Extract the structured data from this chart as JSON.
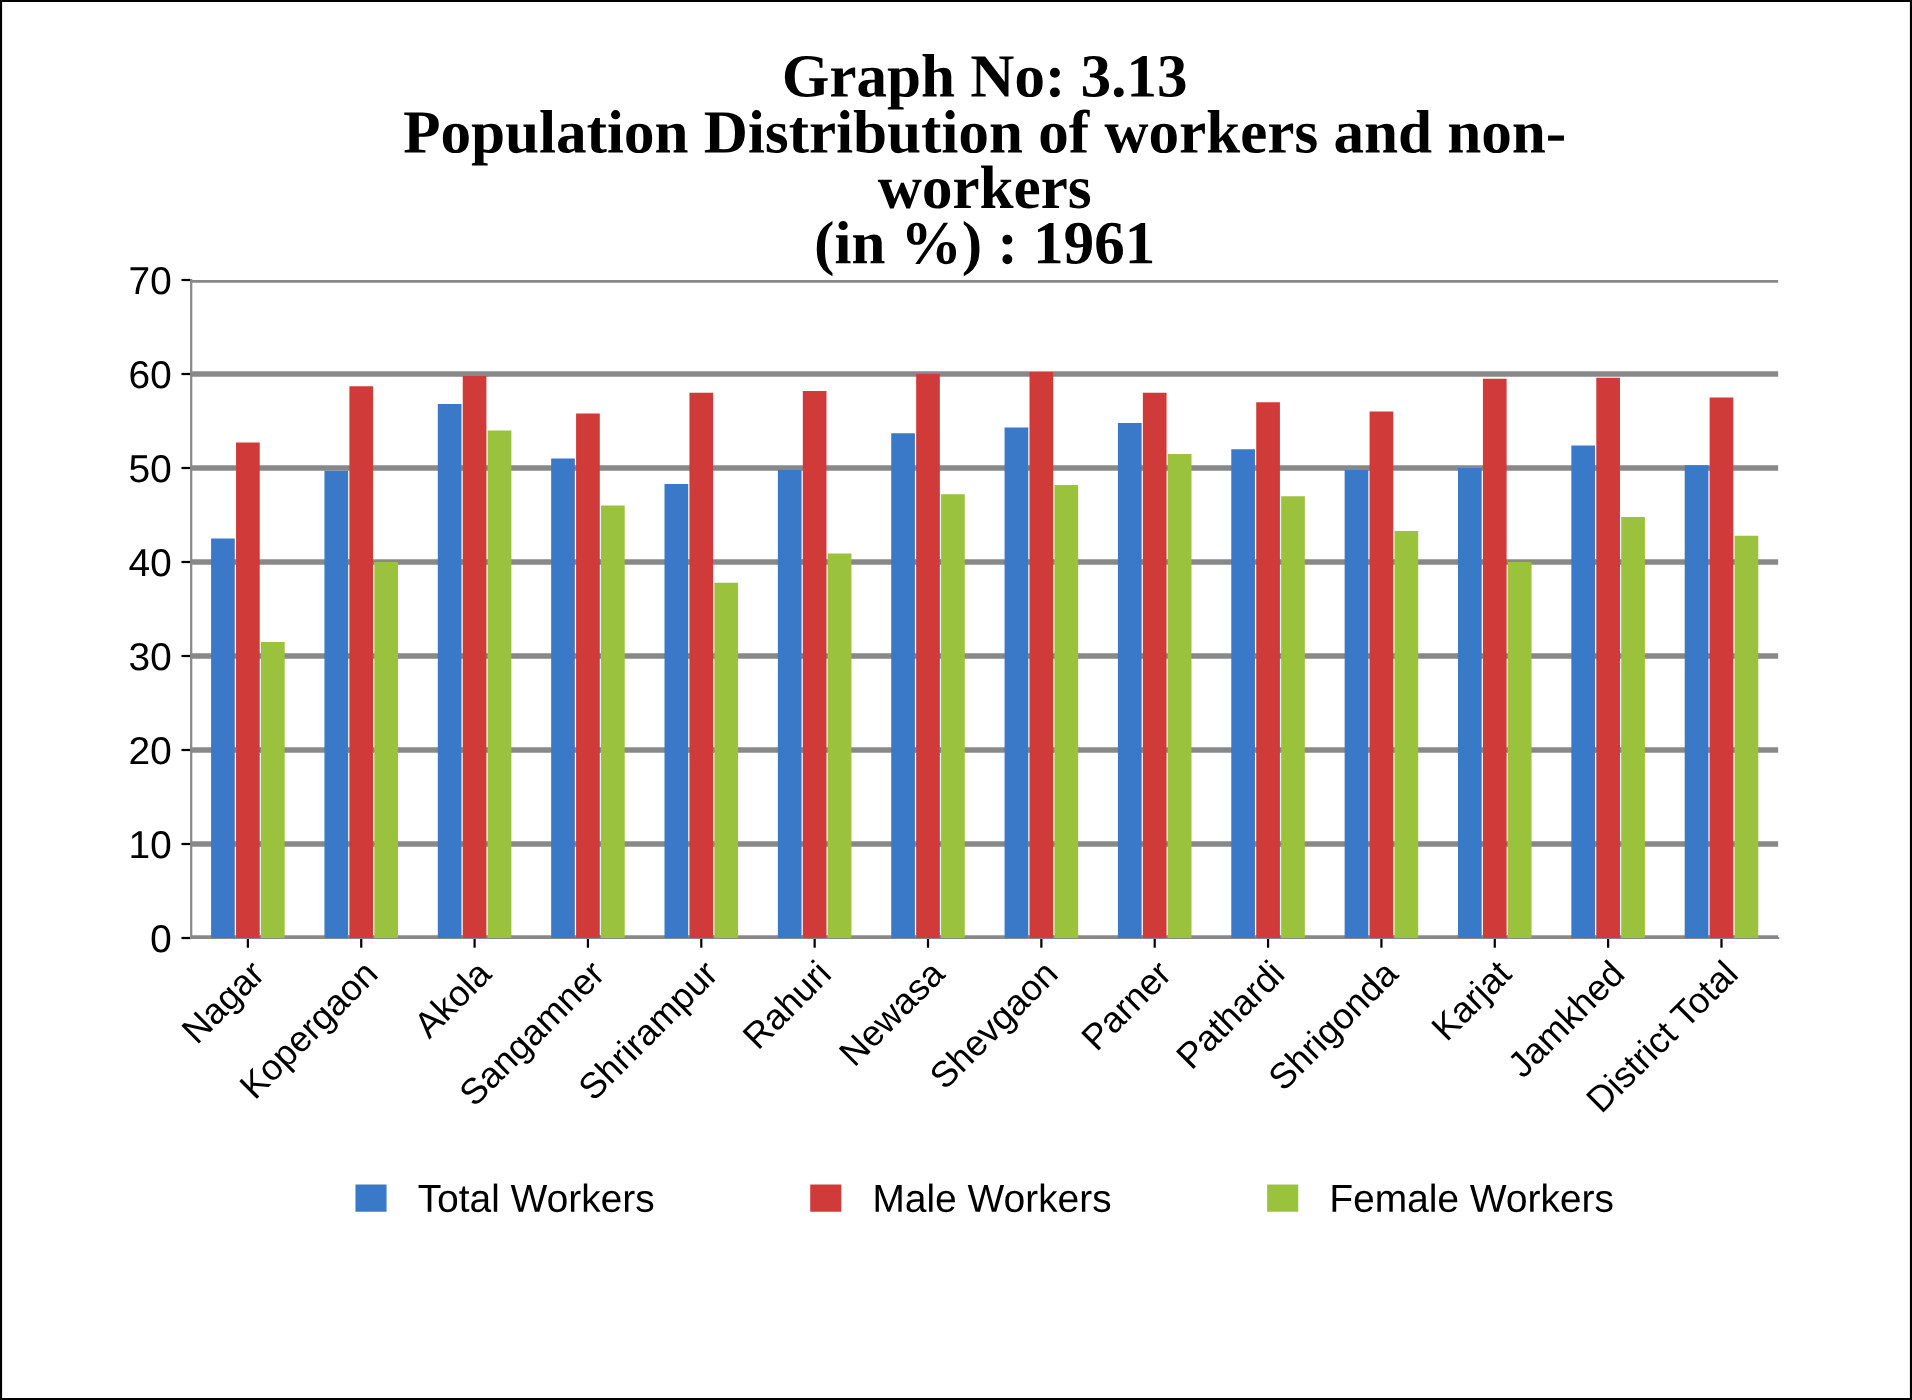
{
  "chart_data": {
    "type": "bar",
    "title": "Graph No: 3.13\nPopulation Distribution of workers and non-\nworkers\n(in %) : 1961",
    "categories": [
      "Nagar",
      "Kopergaon",
      "Akola",
      "Sangamner",
      "Shrirampur",
      "Rahuri",
      "Newasa",
      "Shevgaon",
      "Parner",
      "Pathardi",
      "Shrigonda",
      "Karjat",
      "Jamkhed",
      "District Total"
    ],
    "series": [
      {
        "name": "Total Workers",
        "color": "#3a78c8",
        "values": [
          42.5,
          49.7,
          56.8,
          51,
          48.3,
          49.8,
          53.7,
          54.3,
          54.8,
          52,
          49.8,
          50,
          52.4,
          50.3
        ]
      },
      {
        "name": "Male Workers",
        "color": "#d03a38",
        "values": [
          52.7,
          58.7,
          59.8,
          55.8,
          58,
          58.2,
          60,
          60.2,
          58,
          57,
          56,
          59.5,
          59.6,
          57.5
        ]
      },
      {
        "name": "Female Workers",
        "color": "#9bc23c",
        "values": [
          31.5,
          40,
          54,
          46,
          37.8,
          40.9,
          47.2,
          48.2,
          51.5,
          47,
          43.3,
          40,
          44.8,
          42.8
        ]
      }
    ],
    "ylim": [
      0,
      70
    ],
    "yticks": [
      0,
      10,
      20,
      30,
      40,
      50,
      60,
      70
    ],
    "grid": "y",
    "legend": "bottom"
  }
}
